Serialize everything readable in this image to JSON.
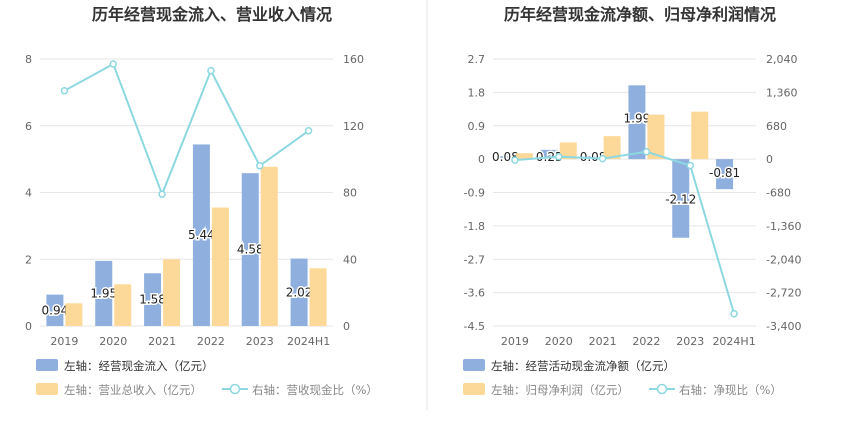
{
  "colors": {
    "bar_primary": "#8fb0de",
    "bar_secondary": "#fdd999",
    "line": "#8dd8e0",
    "grid": "#e6e6e6",
    "axis_text": "#666666",
    "title_text": "#333333",
    "divider": "#e6e6e6"
  },
  "chart_data": [
    {
      "type": "bar",
      "title": "历年经营现金流入、营业收入情况",
      "categories": [
        "2019",
        "2020",
        "2021",
        "2022",
        "2023",
        "2024H1"
      ],
      "left_ticks": [
        "0",
        "2",
        "4",
        "6",
        "8"
      ],
      "right_ticks": [
        "0",
        "40",
        "80",
        "120",
        "160"
      ],
      "ylim": [
        0,
        8
      ],
      "y2lim": [
        0,
        160
      ],
      "series": [
        {
          "name": "经营现金流入（亿元）",
          "legend": "左轴：经营现金流入（亿元）",
          "axis": "left",
          "kind": "bar",
          "color": "#8fb0de",
          "values": [
            0.94,
            1.95,
            1.58,
            5.44,
            4.58,
            2.02
          ],
          "labels": [
            "0.94",
            "1.95",
            "1.58",
            "5.44",
            "4.58",
            "2.02"
          ]
        },
        {
          "name": "营业总收入（亿元）",
          "legend": "左轴：营业总收入（亿元）",
          "axis": "left",
          "kind": "bar",
          "color": "#fdd999",
          "values": [
            0.68,
            1.25,
            2.0,
            3.55,
            4.77,
            1.73
          ]
        },
        {
          "name": "营收现金比（%）",
          "legend": "右轴：营收现金比（%）",
          "axis": "right",
          "kind": "line",
          "color": "#8dd8e0",
          "values": [
            141,
            157,
            79,
            153,
            96,
            117
          ]
        }
      ]
    },
    {
      "type": "bar",
      "title": "历年经营现金流净额、归母净利润情况",
      "categories": [
        "2019",
        "2020",
        "2021",
        "2022",
        "2023",
        "2024H1"
      ],
      "left_ticks": [
        "-4.5",
        "-3.6",
        "-2.7",
        "-1.8",
        "-0.9",
        "0",
        "0.9",
        "1.8",
        "2.7"
      ],
      "right_ticks": [
        "-3,400",
        "-2,720",
        "-2,040",
        "-1,360",
        "-680",
        "0",
        "680",
        "1,360",
        "2,040"
      ],
      "ylim": [
        -4.5,
        2.7
      ],
      "y2lim": [
        -3400,
        2040
      ],
      "series": [
        {
          "name": "经营活动现金流净额（亿元）",
          "legend": "左轴：经营活动现金流净额（亿元）",
          "axis": "left",
          "kind": "bar",
          "color": "#8fb0de",
          "values": [
            0.08,
            0.25,
            0.08,
            1.99,
            -2.12,
            -0.81
          ],
          "labels": [
            "0.08",
            "0.25",
            "0.08",
            "1.99",
            "-2.12",
            "-0.81"
          ]
        },
        {
          "name": "归母净利润（亿元）",
          "legend": "左轴：归母净利润（亿元）",
          "axis": "left",
          "kind": "bar",
          "color": "#fdd999",
          "values": [
            0.16,
            0.45,
            0.62,
            1.2,
            1.28,
            0.0
          ]
        },
        {
          "name": "净现比（%）",
          "legend": "右轴：净现比（%）",
          "axis": "right",
          "kind": "line",
          "color": "#8dd8e0",
          "values": [
            -20,
            50,
            10,
            150,
            -130,
            -3150
          ]
        }
      ]
    }
  ]
}
